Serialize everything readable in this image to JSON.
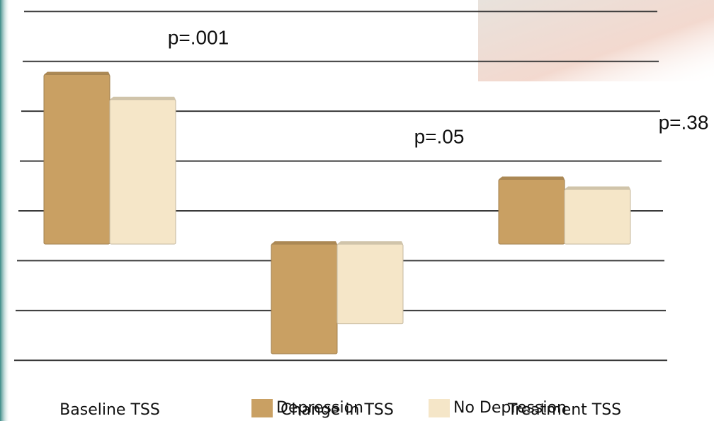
{
  "chart_data": {
    "type": "bar",
    "categories": [
      "Baseline TSS",
      "Change in TSS",
      "Treatment TSS"
    ],
    "series": [
      {
        "name": "Depression",
        "color": "#c9a063",
        "values": [
          3.4,
          -2.2,
          1.3
        ]
      },
      {
        "name": "No Depression",
        "color": "#f5e6c8",
        "values": [
          2.9,
          -1.6,
          1.1
        ]
      }
    ],
    "ylim": [
      -3,
      4
    ],
    "yticks": [
      -3,
      -2,
      -1,
      0,
      1,
      2,
      3,
      4
    ],
    "grid": true,
    "annotations": [
      "p=.001",
      "p=.05",
      "p=.38"
    ]
  }
}
